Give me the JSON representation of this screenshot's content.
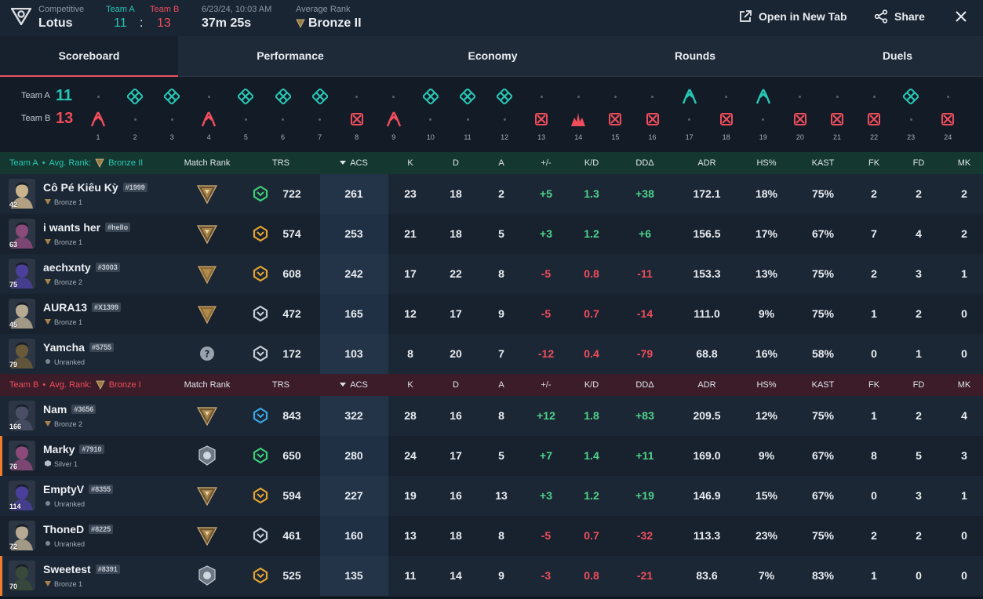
{
  "header": {
    "mode": "Competitive",
    "map": "Lotus",
    "team_a_label": "Team A",
    "team_b_label": "Team B",
    "team_a_score": "11",
    "team_b_score": "13",
    "score_sep": ":",
    "date": "6/23/24, 10:03 AM",
    "duration": "37m 25s",
    "avg_rank_label": "Average Rank",
    "avg_rank": "Bronze II",
    "open_new_tab": "Open in New Tab",
    "share": "Share"
  },
  "tabs": [
    "Scoreboard",
    "Performance",
    "Economy",
    "Rounds",
    "Duels"
  ],
  "timeline": {
    "team_a_label": "Team A",
    "team_b_label": "Team B",
    "team_a_score": "11",
    "team_b_score": "13",
    "rounds": [
      {
        "n": "1",
        "w": "B",
        "icon": "elim"
      },
      {
        "n": "2",
        "w": "A",
        "icon": "elim"
      },
      {
        "n": "3",
        "w": "A",
        "icon": "elim"
      },
      {
        "n": "4",
        "w": "B",
        "icon": "elim"
      },
      {
        "n": "5",
        "w": "A",
        "icon": "elim"
      },
      {
        "n": "6",
        "w": "A",
        "icon": "elim"
      },
      {
        "n": "7",
        "w": "A",
        "icon": "elim"
      },
      {
        "n": "8",
        "w": "B",
        "icon": "elim2"
      },
      {
        "n": "9",
        "w": "B",
        "icon": "elim"
      },
      {
        "n": "10",
        "w": "A",
        "icon": "elim"
      },
      {
        "n": "11",
        "w": "A",
        "icon": "elim"
      },
      {
        "n": "12",
        "w": "A",
        "icon": "elim"
      },
      {
        "n": "13",
        "w": "B",
        "icon": "elim2"
      },
      {
        "n": "14",
        "w": "B",
        "icon": "spike"
      },
      {
        "n": "15",
        "w": "B",
        "icon": "elim2"
      },
      {
        "n": "16",
        "w": "B",
        "icon": "elim2"
      },
      {
        "n": "17",
        "w": "A",
        "icon": "def"
      },
      {
        "n": "18",
        "w": "B",
        "icon": "elim2"
      },
      {
        "n": "19",
        "w": "A",
        "icon": "def"
      },
      {
        "n": "20",
        "w": "B",
        "icon": "elim2"
      },
      {
        "n": "21",
        "w": "B",
        "icon": "elim2"
      },
      {
        "n": "22",
        "w": "B",
        "icon": "elim2"
      },
      {
        "n": "23",
        "w": "A",
        "icon": "elim"
      },
      {
        "n": "24",
        "w": "B",
        "icon": "elim2"
      }
    ]
  },
  "columns": [
    "Match Rank",
    "TRS",
    "ACS",
    "K",
    "D",
    "A",
    "+/-",
    "K/D",
    "DDΔ",
    "ADR",
    "HS%",
    "KAST",
    "FK",
    "FD",
    "MK"
  ],
  "teams": [
    {
      "name": "Team A",
      "avg_rank_label": "Avg. Rank:",
      "avg_rank": "Bronze II",
      "players": [
        {
          "name": "Cô Pé Kiêu Kỳ",
          "tag": "#1999",
          "rank": "Bronze 1",
          "level": "42",
          "mr": "bronze",
          "trs_color": "#3ccf7a",
          "trs": "722",
          "acs": "261",
          "k": "23",
          "d": "18",
          "a": "2",
          "pm": "+5",
          "kd": "1.3",
          "dd": "+38",
          "adr": "172.1",
          "hs": "18%",
          "kast": "75%",
          "fk": "2",
          "fd": "2",
          "mk": "2",
          "avatar_color": "#c9b38c"
        },
        {
          "name": "i wants her",
          "tag": "#hello",
          "rank": "Bronze 1",
          "level": "63",
          "mr": "bronze",
          "trs_color": "#e3a530",
          "trs": "574",
          "acs": "253",
          "k": "21",
          "d": "18",
          "a": "5",
          "pm": "+3",
          "kd": "1.2",
          "dd": "+6",
          "adr": "156.5",
          "hs": "17%",
          "kast": "67%",
          "fk": "7",
          "fd": "4",
          "mk": "2",
          "avatar_color": "#8a4a7a"
        },
        {
          "name": "aechxnty",
          "tag": "#3003",
          "rank": "Bronze 2",
          "level": "75",
          "mr": "bronze2",
          "trs_color": "#e3a530",
          "trs": "608",
          "acs": "242",
          "k": "17",
          "d": "22",
          "a": "8",
          "pm": "-5",
          "kd": "0.8",
          "dd": "-11",
          "adr": "153.3",
          "hs": "13%",
          "kast": "75%",
          "fk": "2",
          "fd": "3",
          "mk": "1",
          "avatar_color": "#4a3f9a"
        },
        {
          "name": "AURA13",
          "tag": "#X1399",
          "rank": "Bronze 1",
          "level": "45",
          "mr": "bronze2",
          "trs_color": "#c8ced6",
          "trs": "472",
          "acs": "165",
          "k": "12",
          "d": "17",
          "a": "9",
          "pm": "-5",
          "kd": "0.7",
          "dd": "-14",
          "adr": "111.0",
          "hs": "9%",
          "kast": "75%",
          "fk": "1",
          "fd": "2",
          "mk": "0",
          "avatar_color": "#b6aa92"
        },
        {
          "name": "Yamcha",
          "tag": "#5755",
          "rank": "Unranked",
          "level": "79",
          "mr": "unknown",
          "trs_color": "#c8ced6",
          "trs": "172",
          "acs": "103",
          "k": "8",
          "d": "20",
          "a": "7",
          "pm": "-12",
          "kd": "0.4",
          "dd": "-79",
          "adr": "68.8",
          "hs": "16%",
          "kast": "58%",
          "fk": "0",
          "fd": "1",
          "mk": "0",
          "avatar_color": "#6a5a3a"
        }
      ]
    },
    {
      "name": "Team B",
      "avg_rank_label": "Avg. Rank:",
      "avg_rank": "Bronze I",
      "players": [
        {
          "name": "Nam",
          "tag": "#3656",
          "rank": "Bronze 2",
          "level": "166",
          "mr": "bronze",
          "trs_color": "#3aa8e6",
          "trs": "843",
          "acs": "322",
          "k": "28",
          "d": "16",
          "a": "8",
          "pm": "+12",
          "kd": "1.8",
          "dd": "+83",
          "adr": "209.5",
          "hs": "12%",
          "kast": "75%",
          "fk": "1",
          "fd": "2",
          "mk": "4",
          "avatar_color": "#4a4f66"
        },
        {
          "name": "Marky",
          "tag": "#7910",
          "rank": "Silver 1",
          "level": "76",
          "mr": "silver",
          "trs_color": "#3ccf7a",
          "trs": "650",
          "acs": "280",
          "k": "24",
          "d": "17",
          "a": "5",
          "pm": "+7",
          "kd": "1.4",
          "dd": "+11",
          "adr": "169.0",
          "hs": "9%",
          "kast": "67%",
          "fk": "8",
          "fd": "5",
          "mk": "3",
          "avatar_color": "#8a4a7a",
          "accent": true
        },
        {
          "name": "EmptyV",
          "tag": "#8355",
          "rank": "Unranked",
          "level": "114",
          "mr": "bronze",
          "trs_color": "#e3a530",
          "trs": "594",
          "acs": "227",
          "k": "19",
          "d": "16",
          "a": "13",
          "pm": "+3",
          "kd": "1.2",
          "dd": "+19",
          "adr": "146.9",
          "hs": "15%",
          "kast": "67%",
          "fk": "0",
          "fd": "3",
          "mk": "1",
          "avatar_color": "#4a3f9a"
        },
        {
          "name": "ThoneD",
          "tag": "#8225",
          "rank": "Unranked",
          "level": "72",
          "mr": "bronze",
          "trs_color": "#c8ced6",
          "trs": "461",
          "acs": "160",
          "k": "13",
          "d": "18",
          "a": "8",
          "pm": "-5",
          "kd": "0.7",
          "dd": "-32",
          "adr": "113.3",
          "hs": "23%",
          "kast": "75%",
          "fk": "2",
          "fd": "2",
          "mk": "0",
          "avatar_color": "#b6aa92"
        },
        {
          "name": "Sweetest",
          "tag": "#8391",
          "rank": "Bronze 1",
          "level": "70",
          "mr": "silver",
          "trs_color": "#e3a530",
          "trs": "525",
          "acs": "135",
          "k": "11",
          "d": "14",
          "a": "9",
          "pm": "-3",
          "kd": "0.8",
          "dd": "-21",
          "adr": "83.6",
          "hs": "7%",
          "kast": "83%",
          "fk": "1",
          "fd": "0",
          "mk": "0",
          "avatar_color": "#3a4a3a",
          "accent": true
        }
      ]
    }
  ],
  "colors": {
    "team_a": "#27c7b5",
    "team_b": "#ee4d5b",
    "positive": "#4ed28a",
    "negative": "#ee4d5b",
    "tab_underline": "#e8525f",
    "bronze": "#b08a4a"
  }
}
